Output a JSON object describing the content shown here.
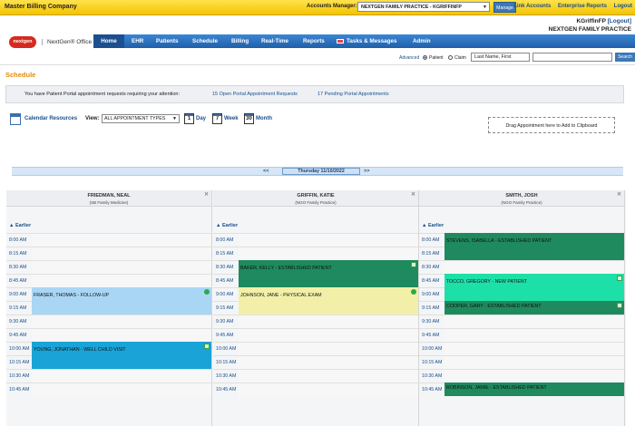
{
  "header": {
    "company": "Master Billing Company",
    "accounts_manager_label": "Accounts Manager:",
    "accounts_manager_value": "NEXTGEN FAMILY PRACTICE - KGRIFFINFP",
    "manage_label": "Manage",
    "links": [
      "Link Accounts",
      "Enterprise Reports",
      "Logout"
    ],
    "user": "KGriffinFP",
    "logout_link": "[Logout]",
    "practice": "NEXTGEN FAMILY PRACTICE"
  },
  "logo": {
    "mark": "nextgen",
    "text": "NextGen® Office"
  },
  "nav": {
    "items": [
      "Home",
      "EHR",
      "Patients",
      "Schedule",
      "Billing",
      "Real-Time",
      "Reports",
      "Tasks & Messages",
      "Admin"
    ],
    "active": "Home"
  },
  "search": {
    "advanced": "Advanced",
    "patient_label": "Patient",
    "claim_label": "Claim",
    "name_option": "Last Name, First",
    "button": "Search"
  },
  "page_title": "Schedule",
  "portal": {
    "message": "You have Patient Portal appointment requests requiring your attention:",
    "requests_link": "15 Open Portal Appointment Requests",
    "pending_link": "17 Pending Portal Appointments"
  },
  "toolbar": {
    "calendar_resources": "Calendar Resources",
    "view_label": "View:",
    "view_value": "ALL APPOINTMENT TYPES",
    "day_num": "1",
    "day_label": "Day",
    "week_num": "7",
    "week_label": "Week",
    "month_num": "30",
    "month_label": "Month",
    "clipboard": "Drag Appointment here to Add to Clipboard"
  },
  "datebar": {
    "prev": "<<",
    "next": ">>",
    "date": "Thursday 11/10/2022"
  },
  "schedule": {
    "earlier": "Earlier",
    "times": [
      "8:00 AM",
      "8:15 AM",
      "8:30 AM",
      "8:45 AM",
      "9:00 AM",
      "9:15 AM",
      "9:30 AM",
      "9:45 AM",
      "10:00 AM",
      "10:15 AM",
      "10:30 AM",
      "10:45 AM"
    ],
    "resources": [
      {
        "name": "FRIEDMAN, NEAL",
        "sub": "(SB Family Medicine)",
        "appts": [
          {
            "label": "FRASER, THOMAS - FOLLOW-UP",
            "start": 4,
            "span": 2,
            "color": "#a9d6f5",
            "badge": "green"
          },
          {
            "label": "YOUNG, JONATHAN - WELL CHILD VISIT",
            "start": 8,
            "span": 2,
            "color": "#1aa3d6",
            "badge": "box"
          }
        ]
      },
      {
        "name": "GRIFFIN, KATIE",
        "sub": "(NGO Family Practice)",
        "appts": [
          {
            "label": "BAKER, KELLY - ESTABLISHED PATIENT",
            "start": 2,
            "span": 2,
            "color": "#1e8a5e",
            "badge": "box"
          },
          {
            "label": "JOHNSON, JANE - PHYSICAL EXAM",
            "start": 4,
            "span": 2,
            "color": "#f2f0a8",
            "badge": "green"
          }
        ]
      },
      {
        "name": "SMITH, JOSH",
        "sub": "(NGO Family Practice)",
        "appts": [
          {
            "label": "STEVENS, ISABELLA - ESTABLISHED PATIENT",
            "start": 0,
            "span": 2,
            "color": "#1e8a5e",
            "badge": "none"
          },
          {
            "label": "TOCCO, GREGORY - NEW PATIENT",
            "start": 3,
            "span": 2,
            "color": "#1de0a8",
            "badge": "box"
          },
          {
            "label": "COOPER, GARY - ESTABLISHED PATIENT",
            "start": 5,
            "span": 1,
            "color": "#1e8a5e",
            "badge": "box"
          },
          {
            "label": "ROBINSON, JAMIE - ESTABLISHED PATIENT",
            "start": 11,
            "span": 1,
            "color": "#1e8a5e",
            "badge": "none"
          }
        ]
      }
    ]
  }
}
